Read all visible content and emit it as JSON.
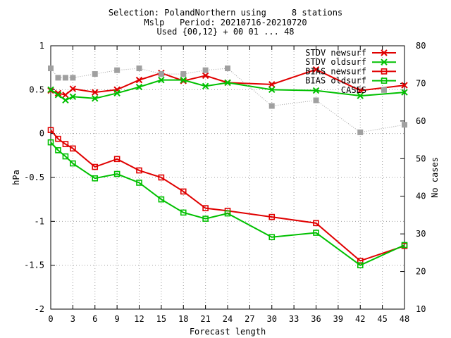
{
  "title_lines": [
    "Selection: PolandNorthern using     8 stations",
    "Mslp   Period: 20210716-20210720",
    "Used {00,12} + 00 01 ... 48"
  ],
  "chart_data": {
    "type": "line",
    "title": "Selection: PolandNorthern using     8 stations\nMslp   Period: 20210716-20210720\nUsed {00,12} + 00 01 ... 48",
    "xlabel": "Forecast length",
    "ylabel": "hPa",
    "y2label": "No cases",
    "x": [
      0,
      1,
      2,
      3,
      6,
      9,
      12,
      15,
      18,
      21,
      24,
      30,
      36,
      42,
      48
    ],
    "xticks": [
      "0",
      "3",
      "6",
      "9",
      "12",
      "15",
      "18",
      "21",
      "24",
      "27",
      "30",
      "33",
      "36",
      "39",
      "42",
      "45",
      "48"
    ],
    "xlim": [
      0,
      48
    ],
    "ylim": [
      -2,
      1
    ],
    "yticks": [
      "1",
      "0.5",
      "0",
      "-0.5",
      "-1",
      "-1.5",
      "-2"
    ],
    "y2lim": [
      10,
      80
    ],
    "y2ticks": [
      "80",
      "70",
      "60",
      "50",
      "40",
      "30",
      "20",
      "10"
    ],
    "grid": true,
    "legend_position": "top-right",
    "series": [
      {
        "name": "STDV newsurf",
        "color": "#e00000",
        "marker": "x",
        "axis": "y",
        "values": [
          0.49,
          0.46,
          0.44,
          0.51,
          0.47,
          0.5,
          0.61,
          0.69,
          0.6,
          0.66,
          0.58,
          0.56,
          0.73,
          0.49,
          0.55
        ]
      },
      {
        "name": "STDV oldsurf",
        "color": "#00c000",
        "marker": "x",
        "axis": "y",
        "values": [
          0.5,
          0.44,
          0.38,
          0.42,
          0.4,
          0.46,
          0.53,
          0.61,
          0.61,
          0.54,
          0.58,
          0.5,
          0.49,
          0.43,
          0.47
        ]
      },
      {
        "name": "BIAS newsurf",
        "color": "#e00000",
        "marker": "square",
        "axis": "y",
        "values": [
          0.04,
          -0.06,
          -0.12,
          -0.17,
          -0.38,
          -0.29,
          -0.42,
          -0.5,
          -0.66,
          -0.85,
          -0.88,
          -0.95,
          -1.02,
          -1.45,
          -1.28
        ]
      },
      {
        "name": "BIAS oldsurf",
        "color": "#00c000",
        "marker": "square",
        "axis": "y",
        "values": [
          -0.1,
          -0.19,
          -0.26,
          -0.34,
          -0.51,
          -0.46,
          -0.56,
          -0.75,
          -0.9,
          -0.97,
          -0.91,
          -1.18,
          -1.13,
          -1.5,
          -1.27
        ]
      },
      {
        "name": "CASES",
        "color": "#a0a0a0",
        "marker": "filled-square",
        "axis": "y2",
        "values": [
          74,
          71.5,
          71.5,
          71.5,
          72.5,
          73.5,
          74,
          72.5,
          72.5,
          73.5,
          74,
          64,
          65.5,
          57,
          59
        ]
      }
    ]
  }
}
